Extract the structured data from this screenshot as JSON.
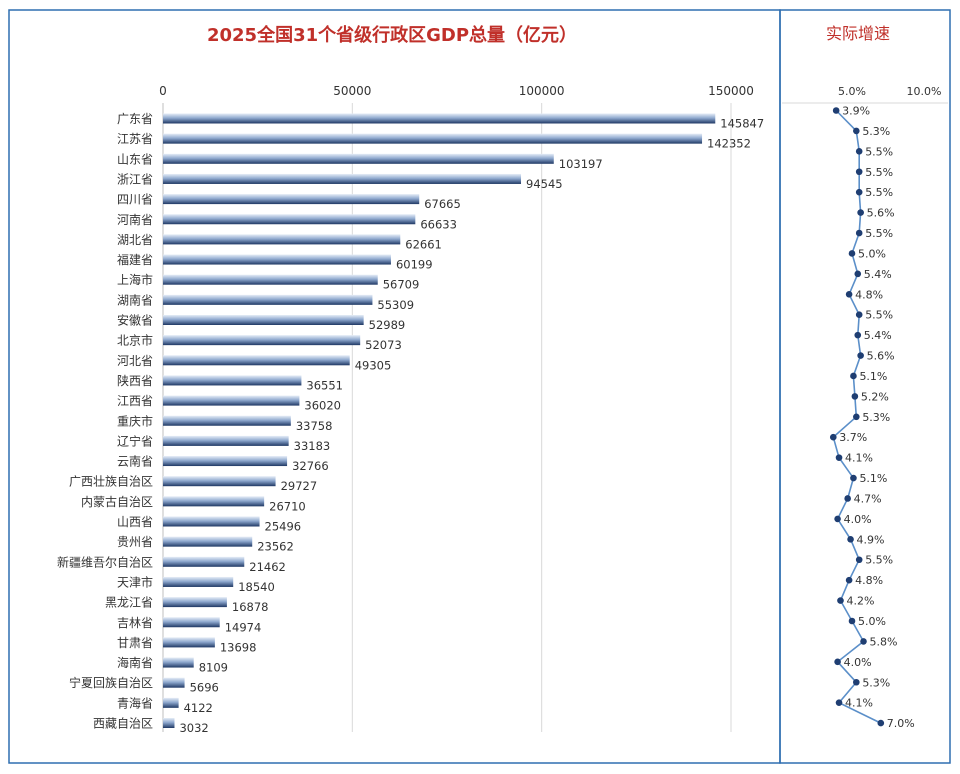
{
  "colors": {
    "title": "#c0302a",
    "panel_border": "#2f6eb0",
    "bar_dark": "#1f3864",
    "bar_light": "#e6edf7",
    "line": "#5b8fc9",
    "marker": "#1f3e72",
    "text": "#333333"
  },
  "chart_data": [
    {
      "type": "bar",
      "orientation": "horizontal",
      "title": "2025全国31个省级行政区GDP总量（亿元）",
      "x_ticks": [
        "0",
        "50000",
        "100000",
        "150000"
      ],
      "xlim": [
        0,
        150000
      ],
      "grid": true,
      "categories": [
        "广东省",
        "江苏省",
        "山东省",
        "浙江省",
        "四川省",
        "河南省",
        "湖北省",
        "福建省",
        "上海市",
        "湖南省",
        "安徽省",
        "北京市",
        "河北省",
        "陕西省",
        "江西省",
        "重庆市",
        "辽宁省",
        "云南省",
        "广西壮族自治区",
        "内蒙古自治区",
        "山西省",
        "贵州省",
        "新疆维吾尔自治区",
        "天津市",
        "黑龙江省",
        "吉林省",
        "甘肃省",
        "海南省",
        "宁夏回族自治区",
        "青海省",
        "西藏自治区"
      ],
      "values": [
        145847,
        142352,
        103197,
        94545,
        67665,
        66633,
        62661,
        60199,
        56709,
        55309,
        52989,
        52073,
        49305,
        36551,
        36020,
        33758,
        33183,
        32766,
        29727,
        26710,
        25496,
        23562,
        21462,
        18540,
        16878,
        14974,
        13698,
        8109,
        5696,
        4122,
        3032
      ]
    },
    {
      "type": "line",
      "title": "实际增速",
      "x_ticks": [
        "5.0%",
        "10.0%"
      ],
      "xlim": [
        0,
        10
      ],
      "values": [
        3.9,
        5.3,
        5.5,
        5.5,
        5.5,
        5.6,
        5.5,
        5.0,
        5.4,
        4.8,
        5.5,
        5.4,
        5.6,
        5.1,
        5.2,
        5.3,
        3.7,
        4.1,
        5.1,
        4.7,
        4.0,
        4.9,
        5.5,
        4.8,
        4.2,
        5.0,
        5.8,
        4.0,
        5.3,
        4.1,
        7.0
      ],
      "labels": [
        "3.9%",
        "5.3%",
        "5.5%",
        "5.5%",
        "5.5%",
        "5.6%",
        "5.5%",
        "5.0%",
        "5.4%",
        "4.8%",
        "5.5%",
        "5.4%",
        "5.6%",
        "5.1%",
        "5.2%",
        "5.3%",
        "3.7%",
        "4.1%",
        "5.1%",
        "4.7%",
        "4.0%",
        "4.9%",
        "5.5%",
        "4.8%",
        "4.2%",
        "5.0%",
        "5.8%",
        "4.0%",
        "5.3%",
        "4.1%",
        "7.0%"
      ]
    }
  ]
}
